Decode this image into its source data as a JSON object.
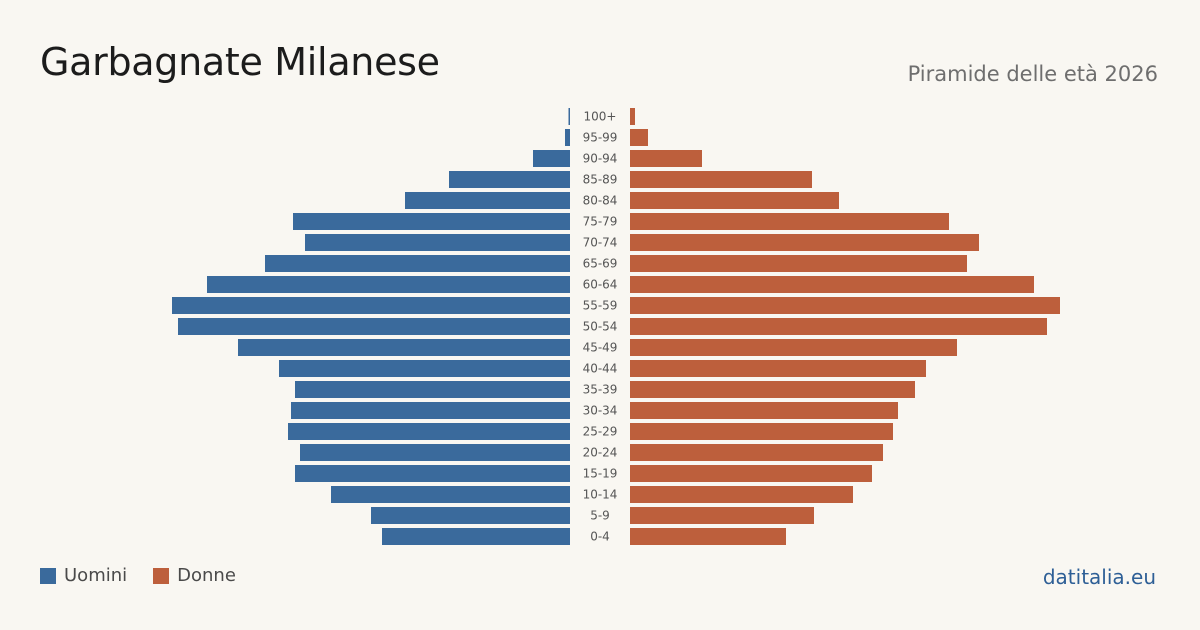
{
  "header": {
    "title": "Garbagnate Milanese",
    "subtitle": "Piramide delle età 2026"
  },
  "legend": {
    "men_label": "Uomini",
    "women_label": "Donne"
  },
  "footer": {
    "source": "datitalia.eu"
  },
  "colors": {
    "men": "#3a6a9c",
    "women": "#bd5f3c",
    "background": "#f9f7f2"
  },
  "chart_data": {
    "type": "bar",
    "orientation": "horizontal",
    "layout": "population-pyramid",
    "categories": [
      "100+",
      "95-99",
      "90-94",
      "85-89",
      "80-84",
      "75-79",
      "70-74",
      "65-69",
      "60-64",
      "55-59",
      "50-54",
      "45-49",
      "40-44",
      "35-39",
      "30-34",
      "25-29",
      "20-24",
      "15-19",
      "10-14",
      "5-9",
      "0-4"
    ],
    "series": [
      {
        "name": "Uomini",
        "values": [
          1,
          5,
          37,
          121,
          165,
          277,
          265,
          305,
          363,
          398,
          392,
          332,
          291,
          275,
          279,
          282,
          270,
          275,
          239,
          199,
          188
        ]
      },
      {
        "name": "Donne",
        "values": [
          5,
          18,
          72,
          182,
          209,
          319,
          349,
          337,
          404,
          430,
          417,
          327,
          296,
          285,
          268,
          263,
          253,
          242,
          223,
          184,
          156
        ]
      }
    ],
    "xlabel": "",
    "ylabel": "",
    "grid": false,
    "legend_position": "bottom-left"
  }
}
